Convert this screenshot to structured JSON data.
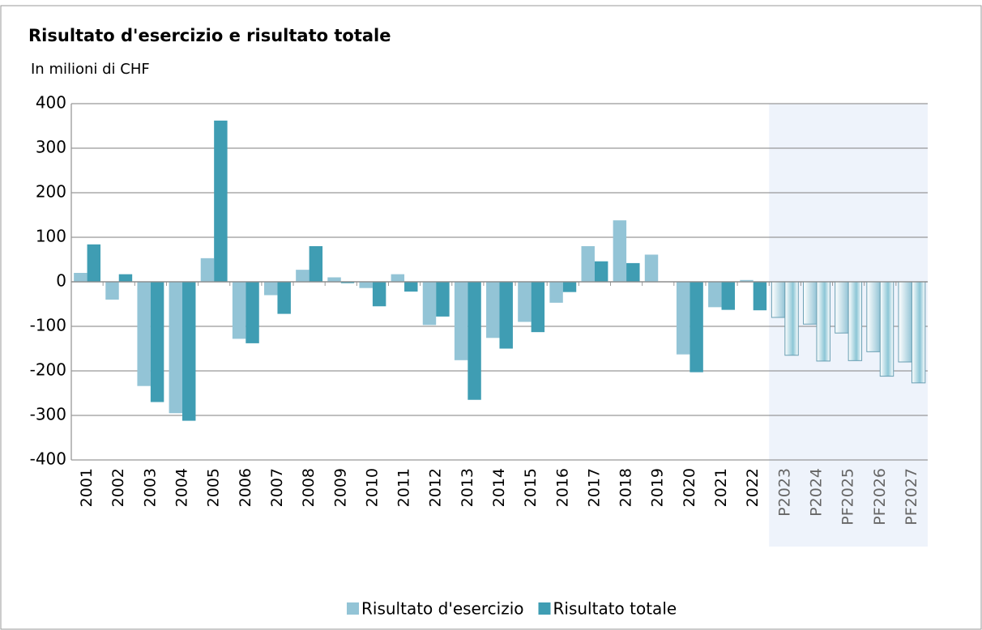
{
  "chart_data": {
    "type": "bar",
    "title": "Risultato d'esercizio e risultato totale",
    "subtitle": "In milioni di CHF",
    "categories": [
      "2001",
      "2002",
      "2003",
      "2004",
      "2005",
      "2006",
      "2007",
      "2008",
      "2009",
      "2010",
      "2011",
      "2012",
      "2013",
      "2014",
      "2015",
      "2016",
      "2017",
      "2018",
      "2019",
      "2020",
      "2021",
      "2022",
      "P2023",
      "P2024",
      "PF2025",
      "PF2026",
      "PF2027"
    ],
    "series": [
      {
        "name": "Risultato d'esercizio",
        "color": "#93c4d6",
        "values": [
          20,
          -40,
          -234,
          -295,
          53,
          -128,
          -30,
          27,
          10,
          -14,
          17,
          -97,
          -176,
          -126,
          -90,
          -47,
          80,
          138,
          61,
          -163,
          -57,
          4,
          -80,
          -95,
          -115,
          -157,
          -180
        ]
      },
      {
        "name": "Risultato totale",
        "color": "#3f9db3",
        "values": [
          84,
          17,
          -270,
          -312,
          362,
          -138,
          -72,
          80,
          -3,
          -55,
          -22,
          -78,
          -265,
          -150,
          -113,
          -23,
          46,
          42,
          0,
          -203,
          -63,
          -64,
          -165,
          -178,
          -177,
          -212,
          -227
        ]
      }
    ],
    "ylim": [
      -400,
      400
    ],
    "yticks": [
      -400,
      -300,
      -200,
      -100,
      0,
      100,
      200,
      300,
      400
    ],
    "grid": true
  }
}
